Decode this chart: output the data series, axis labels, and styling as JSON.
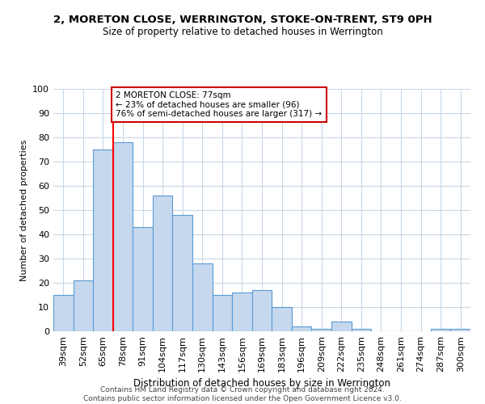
{
  "title1": "2, MORETON CLOSE, WERRINGTON, STOKE-ON-TRENT, ST9 0PH",
  "title2": "Size of property relative to detached houses in Werrington",
  "xlabel": "Distribution of detached houses by size in Werrington",
  "ylabel": "Number of detached properties",
  "bar_labels": [
    "39sqm",
    "52sqm",
    "65sqm",
    "78sqm",
    "91sqm",
    "104sqm",
    "117sqm",
    "130sqm",
    "143sqm",
    "156sqm",
    "169sqm",
    "183sqm",
    "196sqm",
    "209sqm",
    "222sqm",
    "235sqm",
    "248sqm",
    "261sqm",
    "274sqm",
    "287sqm",
    "300sqm"
  ],
  "bar_values": [
    15,
    21,
    75,
    78,
    43,
    56,
    48,
    28,
    15,
    16,
    17,
    10,
    2,
    1,
    4,
    1,
    0,
    0,
    0,
    1,
    1
  ],
  "bar_color": "#c5d8ed",
  "bar_edge_color": "#5b9bd5",
  "ref_line_bar_index": 3,
  "annotation_title": "2 MORETON CLOSE: 77sqm",
  "annotation_line1": "← 23% of detached houses are smaller (96)",
  "annotation_line2": "76% of semi-detached houses are larger (317) →",
  "annotation_box_edgecolor": "#cc0000",
  "background_color": "#ffffff",
  "grid_color": "#c8d8e8",
  "ylim": [
    0,
    100
  ],
  "yticks": [
    0,
    10,
    20,
    30,
    40,
    50,
    60,
    70,
    80,
    90,
    100
  ],
  "footer1": "Contains HM Land Registry data © Crown copyright and database right 2024.",
  "footer2": "Contains public sector information licensed under the Open Government Licence v3.0."
}
